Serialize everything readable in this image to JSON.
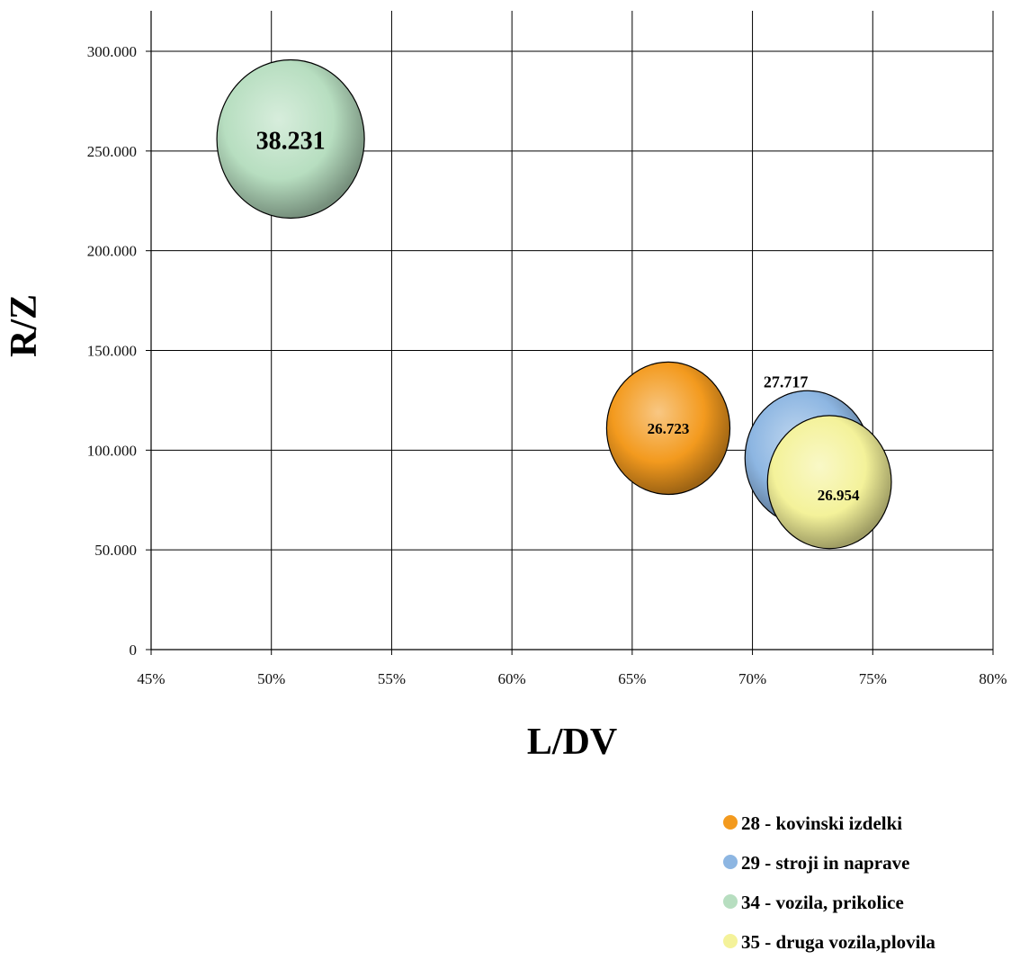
{
  "chart_data": {
    "type": "bubble",
    "xlabel": "L/DV",
    "ylabel": "R/Z",
    "xlim": [
      0.45,
      0.8
    ],
    "ylim": [
      0,
      300000
    ],
    "x_ticks": [
      "45%",
      "50%",
      "55%",
      "60%",
      "65%",
      "70%",
      "75%",
      "80%"
    ],
    "y_ticks": [
      "0",
      "50.000",
      "100.000",
      "150.000",
      "200.000",
      "250.000",
      "300.000"
    ],
    "grid": true,
    "legend_position": "bottom-right",
    "series": [
      {
        "name": "28 - kovinski izdelki",
        "x": 0.665,
        "y": 111000,
        "size": 26723,
        "label": "26.723",
        "color": "#F39A1E"
      },
      {
        "name": "29 - stroji in naprave",
        "x": 0.723,
        "y": 96000,
        "size": 27717,
        "label": "27.717",
        "color": "#8DB6E2"
      },
      {
        "name": "34 - vozila, prikolice",
        "x": 0.508,
        "y": 256000,
        "size": 38231,
        "label": "38.231",
        "color": "#B7DEC0"
      },
      {
        "name": "35 - druga vozila,plovila",
        "x": 0.732,
        "y": 84000,
        "size": 26954,
        "label": "26.954",
        "color": "#F4F29A"
      }
    ]
  }
}
